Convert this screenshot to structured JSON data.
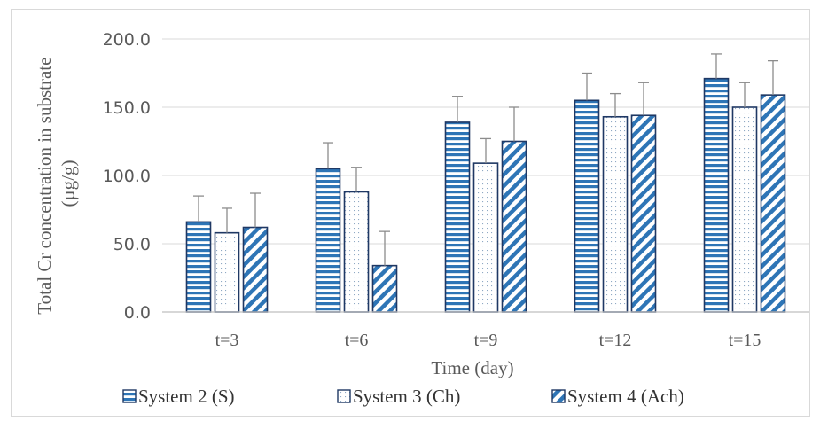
{
  "chart_data": {
    "type": "bar",
    "title": "",
    "xlabel": "Time (day)",
    "ylabel": "Total Cr concentration in substrate (µg/g)",
    "ylabel_lines": [
      "Total Cr concentration in substrate",
      "(µg/g)"
    ],
    "ylim": [
      0,
      200
    ],
    "yticks": [
      "0.0",
      "50.0",
      "100.0",
      "150.0",
      "200.0"
    ],
    "grid": true,
    "legend_position": "bottom",
    "categories": [
      "t=3",
      "t=6",
      "t=9",
      "t=12",
      "t=15"
    ],
    "series": [
      {
        "name": "System 2 (S)",
        "pattern": "horizontal-stripes",
        "color": "#2e75b6",
        "values": [
          66,
          105,
          139,
          155,
          171
        ],
        "errors": [
          19,
          19,
          19,
          20,
          18
        ]
      },
      {
        "name": "System 3 (Ch)",
        "pattern": "dots",
        "color": "#2e75b6",
        "values": [
          58,
          88,
          109,
          143,
          150
        ],
        "errors": [
          18,
          18,
          18,
          17,
          18
        ]
      },
      {
        "name": "System 4 (Ach)",
        "pattern": "diagonal-stripes",
        "color": "#2e75b6",
        "values": [
          62,
          34,
          125,
          144,
          159
        ],
        "errors": [
          25,
          25,
          25,
          24,
          25
        ]
      }
    ]
  }
}
